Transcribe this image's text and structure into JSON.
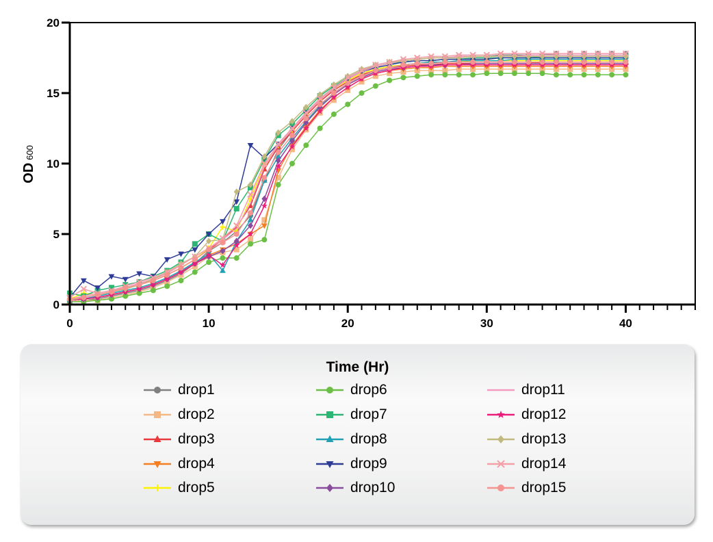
{
  "chart_data": {
    "type": "line",
    "title": "",
    "xlabel": "Time (Hr)",
    "ylabel": "OD",
    "ylabel_sub": "600",
    "xlim": [
      0,
      45
    ],
    "ylim": [
      0,
      20
    ],
    "xticks": [
      "0",
      "10",
      "20",
      "30",
      "40"
    ],
    "yticks": [
      "0",
      "5",
      "10",
      "15",
      "20"
    ],
    "grid": false,
    "legend_placement": "bottom",
    "x": [
      0,
      1,
      2,
      3,
      4,
      5,
      6,
      7,
      8,
      9,
      10,
      11,
      12,
      13,
      14,
      15,
      16,
      17,
      18,
      19,
      20,
      21,
      22,
      23,
      24,
      25,
      26,
      27,
      28,
      29,
      30,
      31,
      32,
      33,
      34,
      35,
      36,
      37,
      38,
      39,
      40
    ],
    "series": [
      {
        "name": "drop1",
        "color": "#808080",
        "marker": "circle",
        "values": [
          0.2,
          0.3,
          0.4,
          0.6,
          0.8,
          1.0,
          1.3,
          1.7,
          2.2,
          2.9,
          3.8,
          4.4,
          5.2,
          6.3,
          8.8,
          11.0,
          12.3,
          13.6,
          14.6,
          15.4,
          16.0,
          16.5,
          16.9,
          17.1,
          17.3,
          17.4,
          17.5,
          17.5,
          17.6,
          17.6,
          17.6,
          17.7,
          17.7,
          17.7,
          17.7,
          17.8,
          17.8,
          17.8,
          17.8,
          17.8,
          17.8
        ]
      },
      {
        "name": "drop2",
        "color": "#f4b887",
        "marker": "square",
        "values": [
          0.2,
          0.3,
          0.3,
          0.5,
          0.7,
          0.9,
          1.2,
          1.6,
          2.1,
          2.7,
          3.4,
          3.7,
          3.9,
          4.6,
          6.0,
          9.0,
          11.0,
          12.4,
          13.6,
          14.5,
          15.2,
          15.8,
          16.2,
          16.4,
          16.5,
          16.6,
          16.6,
          16.6,
          16.7,
          16.7,
          16.7,
          16.7,
          16.7,
          16.7,
          16.7,
          16.7,
          16.7,
          16.7,
          16.7,
          16.7,
          16.7
        ]
      },
      {
        "name": "drop3",
        "color": "#e8393d",
        "marker": "triangle",
        "values": [
          0.4,
          0.5,
          0.7,
          0.9,
          1.1,
          1.4,
          1.7,
          2.1,
          2.6,
          3.2,
          3.9,
          4.6,
          5.5,
          7.0,
          9.6,
          11.2,
          12.3,
          13.4,
          14.4,
          15.2,
          15.8,
          16.3,
          16.6,
          16.8,
          16.9,
          17.0,
          17.0,
          17.1,
          17.1,
          17.1,
          17.1,
          17.1,
          17.1,
          17.1,
          17.2,
          17.2,
          17.2,
          17.2,
          17.2,
          17.2,
          17.2
        ]
      },
      {
        "name": "drop4",
        "color": "#f37f22",
        "marker": "triangle-down",
        "values": [
          0.3,
          0.4,
          0.5,
          0.7,
          0.9,
          1.1,
          1.4,
          1.8,
          2.3,
          2.9,
          3.5,
          3.9,
          4.3,
          5.0,
          5.6,
          9.5,
          11.3,
          12.6,
          13.8,
          14.7,
          15.4,
          16.0,
          16.4,
          16.6,
          16.7,
          16.8,
          16.8,
          16.9,
          16.9,
          16.9,
          16.9,
          16.9,
          16.9,
          16.9,
          16.9,
          16.9,
          16.9,
          16.9,
          16.9,
          16.9,
          16.9
        ]
      },
      {
        "name": "drop5",
        "color": "#fff200",
        "marker": "plus",
        "values": [
          0.4,
          0.8,
          0.7,
          0.9,
          1.2,
          1.4,
          1.7,
          2.1,
          2.6,
          3.2,
          4.0,
          5.5,
          5.2,
          7.5,
          10.0,
          11.3,
          12.4,
          13.5,
          14.5,
          15.3,
          15.9,
          16.4,
          16.7,
          16.9,
          17.0,
          17.1,
          17.2,
          17.2,
          17.2,
          17.3,
          17.3,
          17.3,
          17.3,
          17.3,
          17.3,
          17.3,
          17.3,
          17.3,
          17.3,
          17.3,
          17.3
        ]
      },
      {
        "name": "drop6",
        "color": "#6cbf45",
        "marker": "circle",
        "values": [
          0.2,
          0.2,
          0.3,
          0.4,
          0.6,
          0.8,
          1.0,
          1.3,
          1.7,
          2.3,
          3.0,
          3.3,
          3.3,
          4.3,
          4.6,
          8.5,
          10.0,
          11.3,
          12.5,
          13.5,
          14.2,
          15.0,
          15.5,
          15.9,
          16.1,
          16.2,
          16.3,
          16.3,
          16.3,
          16.3,
          16.4,
          16.4,
          16.4,
          16.4,
          16.4,
          16.3,
          16.3,
          16.3,
          16.3,
          16.3,
          16.3
        ]
      },
      {
        "name": "drop7",
        "color": "#2bb673",
        "marker": "square",
        "values": [
          0.8,
          0.6,
          1.0,
          1.2,
          1.4,
          1.6,
          2.0,
          2.4,
          3.0,
          4.3,
          5.0,
          4.5,
          6.8,
          8.3,
          10.3,
          12.0,
          12.8,
          13.8,
          14.8,
          15.5,
          16.1,
          16.6,
          16.9,
          17.1,
          17.2,
          17.3,
          17.3,
          17.4,
          17.4,
          17.5,
          17.5,
          17.5,
          17.5,
          17.5,
          17.6,
          17.6,
          17.6,
          17.6,
          17.6,
          17.6,
          17.6
        ]
      },
      {
        "name": "drop8",
        "color": "#1fa0b5",
        "marker": "triangle",
        "values": [
          0.3,
          0.4,
          0.6,
          0.8,
          1.0,
          1.2,
          1.5,
          1.9,
          2.4,
          3.0,
          3.6,
          2.4,
          4.5,
          6.0,
          8.8,
          10.5,
          11.8,
          13.0,
          14.1,
          15.0,
          15.7,
          16.2,
          16.6,
          16.8,
          17.0,
          17.1,
          17.2,
          17.2,
          17.3,
          17.3,
          17.3,
          17.3,
          17.4,
          17.4,
          17.4,
          17.4,
          17.4,
          17.4,
          17.4,
          17.4,
          17.4
        ]
      },
      {
        "name": "drop9",
        "color": "#2e3c97",
        "marker": "triangle-down",
        "values": [
          0.5,
          1.7,
          1.2,
          2.0,
          1.8,
          2.2,
          2.0,
          3.2,
          3.6,
          3.9,
          5.0,
          5.9,
          7.3,
          11.3,
          10.4,
          11.4,
          12.5,
          13.6,
          14.6,
          15.4,
          16.0,
          16.5,
          16.8,
          17.0,
          17.2,
          17.3,
          17.3,
          17.4,
          17.4,
          17.4,
          17.4,
          17.5,
          17.5,
          17.5,
          17.5,
          17.5,
          17.5,
          17.5,
          17.5,
          17.5,
          17.5
        ]
      },
      {
        "name": "drop10",
        "color": "#8a4a9d",
        "marker": "diamond",
        "values": [
          0.3,
          0.4,
          0.5,
          0.7,
          0.9,
          1.1,
          1.4,
          1.8,
          2.3,
          2.9,
          3.4,
          3.8,
          4.5,
          5.6,
          7.5,
          10.2,
          11.6,
          12.9,
          14.0,
          14.9,
          15.6,
          16.1,
          16.5,
          16.7,
          16.8,
          16.9,
          17.0,
          17.0,
          17.0,
          17.1,
          17.1,
          17.1,
          17.1,
          17.1,
          17.1,
          17.1,
          17.1,
          17.1,
          17.1,
          17.1,
          17.1
        ]
      },
      {
        "name": "drop11",
        "color": "#f49ac1",
        "marker": "none",
        "values": [
          0.4,
          0.6,
          0.8,
          1.0,
          1.2,
          1.5,
          1.8,
          2.2,
          2.8,
          3.4,
          4.0,
          4.6,
          5.4,
          7.2,
          9.8,
          11.3,
          12.4,
          13.5,
          14.5,
          15.3,
          16.0,
          16.5,
          16.9,
          17.1,
          17.3,
          17.4,
          17.5,
          17.5,
          17.6,
          17.6,
          17.6,
          17.6,
          17.6,
          17.7,
          17.7,
          17.7,
          17.7,
          17.7,
          17.7,
          17.7,
          17.7
        ]
      },
      {
        "name": "drop12",
        "color": "#ec1c7a",
        "marker": "star",
        "values": [
          0.3,
          0.4,
          0.5,
          0.7,
          0.9,
          1.1,
          1.4,
          1.8,
          2.3,
          2.9,
          3.5,
          2.8,
          4.2,
          5.0,
          7.0,
          9.8,
          11.2,
          12.5,
          13.7,
          14.7,
          15.4,
          16.0,
          16.4,
          16.6,
          16.8,
          16.9,
          16.9,
          17.0,
          17.0,
          17.0,
          17.0,
          17.0,
          17.0,
          17.0,
          17.0,
          17.0,
          17.0,
          17.0,
          17.0,
          17.0,
          17.0
        ]
      },
      {
        "name": "drop13",
        "color": "#c2b97f",
        "marker": "diamond",
        "values": [
          0.3,
          0.5,
          0.7,
          0.9,
          1.1,
          1.4,
          1.8,
          2.3,
          2.9,
          3.4,
          4.5,
          4.6,
          8.0,
          8.5,
          10.5,
          12.2,
          13.0,
          14.0,
          14.9,
          15.6,
          16.2,
          16.7,
          17.0,
          17.2,
          17.3,
          17.4,
          17.5,
          17.5,
          17.5,
          17.6,
          17.6,
          17.6,
          17.6,
          17.6,
          17.6,
          17.6,
          17.6,
          17.6,
          17.6,
          17.6,
          17.6
        ]
      },
      {
        "name": "drop14",
        "color": "#f4a0a8",
        "marker": "x",
        "values": [
          0.5,
          1.1,
          0.8,
          1.0,
          1.3,
          1.6,
          1.9,
          2.3,
          2.8,
          3.4,
          4.0,
          4.7,
          5.6,
          7.8,
          10.0,
          11.4,
          12.5,
          13.6,
          14.6,
          15.4,
          16.1,
          16.6,
          17.0,
          17.2,
          17.4,
          17.5,
          17.6,
          17.6,
          17.7,
          17.7,
          17.7,
          17.8,
          17.8,
          17.8,
          17.8,
          17.8,
          17.8,
          17.8,
          17.8,
          17.8,
          17.8
        ]
      },
      {
        "name": "drop15",
        "color": "#f4938f",
        "marker": "circle",
        "values": [
          0.4,
          0.5,
          0.7,
          0.9,
          1.2,
          1.4,
          1.7,
          2.1,
          2.6,
          3.2,
          3.9,
          4.4,
          5.0,
          6.5,
          9.0,
          10.8,
          12.0,
          13.2,
          14.2,
          15.0,
          15.7,
          16.2,
          16.6,
          16.8,
          17.0,
          17.1,
          17.1,
          17.2,
          17.2,
          17.2,
          17.2,
          17.2,
          17.2,
          17.2,
          17.2,
          17.2,
          17.2,
          17.2,
          17.2,
          17.2,
          17.2
        ]
      }
    ]
  }
}
